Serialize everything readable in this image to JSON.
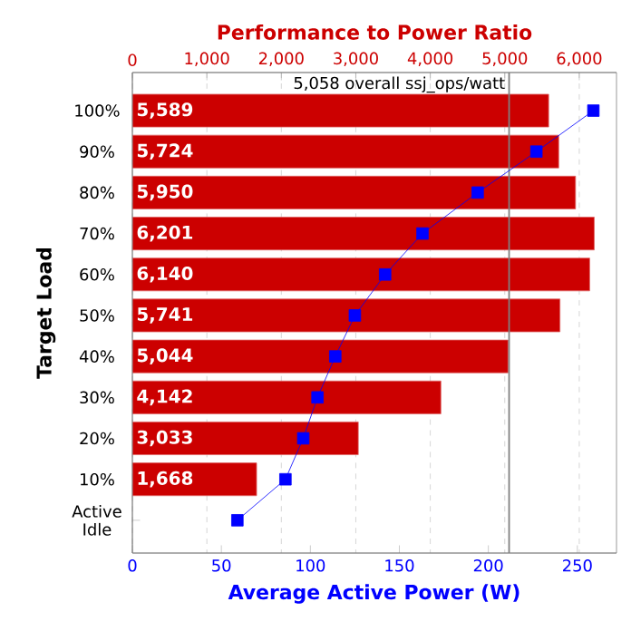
{
  "chart_data": {
    "type": "bar",
    "orientation": "horizontal",
    "x2label": "Performance to Power Ratio",
    "xlabel": "Average Active Power (W)",
    "ylabel": "Target Load",
    "categories": [
      "100%",
      "90%",
      "80%",
      "70%",
      "60%",
      "50%",
      "40%",
      "30%",
      "20%",
      "10%",
      "Active Idle"
    ],
    "series": [
      {
        "axis": "x2",
        "color": "#cc0000",
        "values": [
          5589,
          5724,
          5950,
          6201,
          6140,
          5741,
          5044,
          4142,
          3033,
          1668,
          null
        ],
        "value_labels": [
          "5,589",
          "5,724",
          "5,950",
          "6,201",
          "6,140",
          "5,741",
          "5,044",
          "4,142",
          "3,033",
          "1,668",
          null
        ]
      },
      {
        "type": "line",
        "color": "#0000ff",
        "marker": "square",
        "values": [
          259,
          227,
          194,
          163,
          142,
          125,
          114,
          104,
          96,
          86,
          59
        ]
      }
    ],
    "xlim": [
      0,
      272
    ],
    "xticks": [
      0,
      50,
      100,
      150,
      200,
      250
    ],
    "x2lim": [
      0,
      6500
    ],
    "x2ticks": [
      0,
      {
        "value": 1000,
        "label": "1,000"
      },
      {
        "value": 2000,
        "label": "2,000"
      },
      {
        "value": 3000,
        "label": "3,000"
      },
      {
        "value": 4000,
        "label": "4,000"
      },
      {
        "value": 5000,
        "label": "5,000"
      },
      {
        "value": 6000,
        "label": "6,000"
      }
    ],
    "grid": "x",
    "ref_lines": [
      {
        "axis": "x2",
        "value": 5058,
        "label": "5,058 overall ssj_ops/watt",
        "color": "#808080"
      }
    ]
  }
}
